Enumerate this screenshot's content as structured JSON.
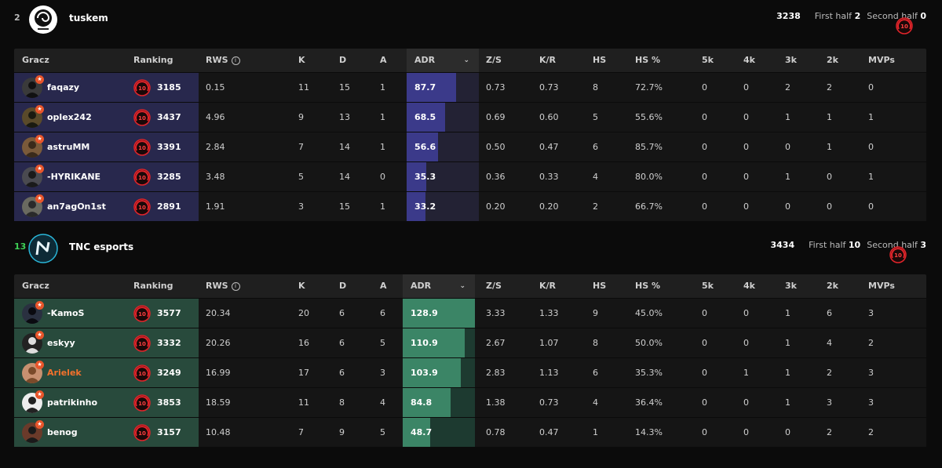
{
  "columns": {
    "player": "Gracz",
    "ranking": "Ranking",
    "rws": "RWS",
    "rws_info_icon": "info-icon",
    "k": "K",
    "d": "D",
    "a": "A",
    "adr": "ADR",
    "adr_sort_icon": "chevron-down-icon",
    "zs": "Z/S",
    "kr": "K/R",
    "hs": "HS",
    "hsp": "HS %",
    "k5": "5k",
    "k4": "4k",
    "k3": "3k",
    "k2": "2k",
    "mvps": "MVPs"
  },
  "teams": [
    {
      "score": "2",
      "name": "tuskem",
      "avg_elo": "3238",
      "first_half_label": "First half",
      "first_half": "2",
      "second_half_label": "Second half",
      "second_half": "0",
      "accent": "#28284d",
      "players": [
        {
          "name": "faqazy",
          "level": "10",
          "elo": "3185",
          "rws": "0.15",
          "k": "11",
          "d": "15",
          "a": "1",
          "adr": "87.7",
          "adr_value": 87.7,
          "zs": "0.73",
          "kr": "0.73",
          "hs": "8",
          "hsp": "72.7%",
          "k5": "0",
          "k4": "0",
          "k3": "2",
          "k2": "2",
          "mvps": "0"
        },
        {
          "name": "oplex242",
          "level": "10",
          "elo": "3437",
          "rws": "4.96",
          "k": "9",
          "d": "13",
          "a": "1",
          "adr": "68.5",
          "adr_value": 68.5,
          "zs": "0.69",
          "kr": "0.60",
          "hs": "5",
          "hsp": "55.6%",
          "k5": "0",
          "k4": "0",
          "k3": "1",
          "k2": "1",
          "mvps": "1"
        },
        {
          "name": "astruMM",
          "level": "10",
          "elo": "3391",
          "rws": "2.84",
          "k": "7",
          "d": "14",
          "a": "1",
          "adr": "56.6",
          "adr_value": 56.6,
          "zs": "0.50",
          "kr": "0.47",
          "hs": "6",
          "hsp": "85.7%",
          "k5": "0",
          "k4": "0",
          "k3": "0",
          "k2": "1",
          "mvps": "0"
        },
        {
          "name": "-HYRIKANE",
          "level": "10",
          "elo": "3285",
          "rws": "3.48",
          "k": "5",
          "d": "14",
          "a": "0",
          "adr": "35.3",
          "adr_value": 35.3,
          "zs": "0.36",
          "kr": "0.33",
          "hs": "4",
          "hsp": "80.0%",
          "k5": "0",
          "k4": "0",
          "k3": "1",
          "k2": "0",
          "mvps": "1"
        },
        {
          "name": "an7agOn1st",
          "level": "10",
          "elo": "2891",
          "rws": "1.91",
          "k": "3",
          "d": "15",
          "a": "1",
          "adr": "33.2",
          "adr_value": 33.2,
          "zs": "0.20",
          "kr": "0.20",
          "hs": "2",
          "hsp": "66.7%",
          "k5": "0",
          "k4": "0",
          "k3": "0",
          "k2": "0",
          "mvps": "0"
        }
      ]
    },
    {
      "score": "13",
      "name": "TNC esports",
      "avg_elo": "3434",
      "first_half_label": "First half",
      "first_half": "10",
      "second_half_label": "Second half",
      "second_half": "3",
      "accent": "#284a3c",
      "players": [
        {
          "name": "-KamoS",
          "level": "10",
          "elo": "3577",
          "rws": "20.34",
          "k": "20",
          "d": "6",
          "a": "6",
          "adr": "128.9",
          "adr_value": 128.9,
          "zs": "3.33",
          "kr": "1.33",
          "hs": "9",
          "hsp": "45.0%",
          "k5": "0",
          "k4": "0",
          "k3": "1",
          "k2": "6",
          "mvps": "3"
        },
        {
          "name": "eskyy",
          "level": "10",
          "elo": "3332",
          "rws": "20.26",
          "k": "16",
          "d": "6",
          "a": "5",
          "adr": "110.9",
          "adr_value": 110.9,
          "zs": "2.67",
          "kr": "1.07",
          "hs": "8",
          "hsp": "50.0%",
          "k5": "0",
          "k4": "0",
          "k3": "1",
          "k2": "4",
          "mvps": "2"
        },
        {
          "name": "Arielek",
          "level": "10",
          "elo": "3249",
          "rws": "16.99",
          "k": "17",
          "d": "6",
          "a": "3",
          "adr": "103.9",
          "adr_value": 103.9,
          "zs": "2.83",
          "kr": "1.13",
          "hs": "6",
          "hsp": "35.3%",
          "k5": "0",
          "k4": "1",
          "k3": "1",
          "k2": "2",
          "mvps": "3",
          "highlight": true
        },
        {
          "name": "patrikinho",
          "level": "10",
          "elo": "3853",
          "rws": "18.59",
          "k": "11",
          "d": "8",
          "a": "4",
          "adr": "84.8",
          "adr_value": 84.8,
          "zs": "1.38",
          "kr": "0.73",
          "hs": "4",
          "hsp": "36.4%",
          "k5": "0",
          "k4": "0",
          "k3": "1",
          "k2": "3",
          "mvps": "3"
        },
        {
          "name": "benog",
          "level": "10",
          "elo": "3157",
          "rws": "10.48",
          "k": "7",
          "d": "9",
          "a": "5",
          "adr": "48.7",
          "adr_value": 48.7,
          "zs": "0.78",
          "kr": "0.47",
          "hs": "1",
          "hsp": "14.3%",
          "k5": "0",
          "k4": "0",
          "k3": "0",
          "k2": "2",
          "mvps": "2"
        }
      ]
    }
  ]
}
